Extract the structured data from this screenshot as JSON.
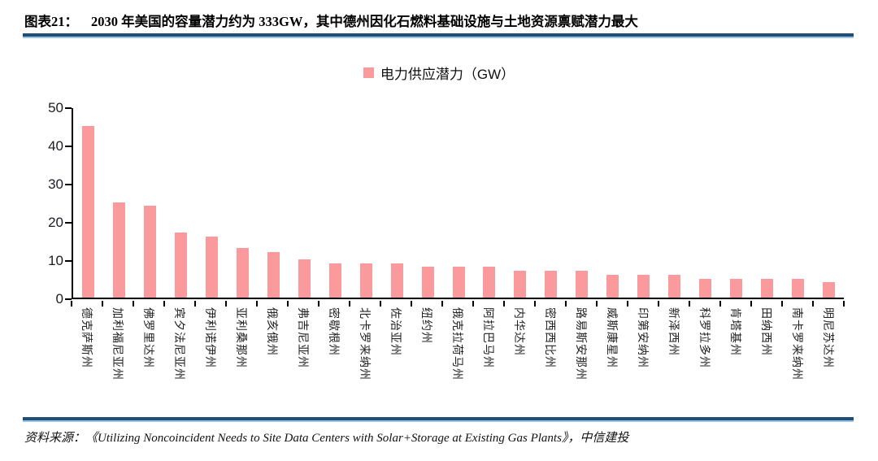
{
  "header": {
    "tag": "图表21：",
    "title": "2030 年美国的容量潜力约为 333GW，其中德州因化石燃料基础设施与土地资源禀赋潜力最大"
  },
  "legend": {
    "label": "电力供应潜力（GW）",
    "marker_color": "#FA9A9D"
  },
  "chart_data": {
    "type": "bar",
    "title": "",
    "legend": [
      "电力供应潜力（GW）"
    ],
    "categories": [
      "德克萨斯州",
      "加利福尼亚州",
      "佛罗里达州",
      "宾夕法尼亚州",
      "伊利诺伊州",
      "亚利桑那州",
      "俄亥俄州",
      "弗吉尼亚州",
      "密歇根州",
      "北卡罗来纳州",
      "佐治亚州",
      "纽约州",
      "俄克拉荷马州",
      "阿拉巴马州",
      "内华达州",
      "密西西比州",
      "路易斯安那州",
      "威斯康星州",
      "印第安纳州",
      "新泽西州",
      "科罗拉多州",
      "肯塔基州",
      "田纳西州",
      "南卡罗来纳州",
      "明尼苏达州"
    ],
    "values": [
      45,
      25,
      24,
      17,
      16,
      13,
      12,
      10,
      9,
      9,
      9,
      8,
      8,
      8,
      7,
      7,
      7,
      6,
      6,
      6,
      5,
      5,
      5,
      5,
      4
    ],
    "xlabel": "",
    "ylabel": "",
    "ylim": [
      0,
      50
    ],
    "yticks": [
      0,
      10,
      20,
      30,
      40,
      50
    ],
    "grid": false,
    "legend_position": "top-center",
    "bar_color": "#FA9A9D"
  },
  "footer": {
    "source": "资料来源：《Utilizing Noncoincident Needs to Site Data Centers with Solar+Storage at Existing Gas Plants》，中信建投"
  },
  "colors": {
    "bar": "#FA9A9D",
    "rule_dark": "#1F4E79",
    "rule_light": "#9DC3E6",
    "axis": "#000000"
  }
}
